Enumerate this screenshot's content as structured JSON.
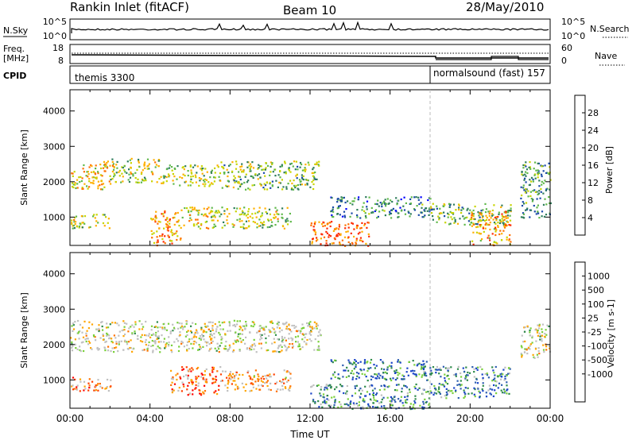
{
  "header": {
    "station": "Rankin Inlet (fitACF)",
    "beam": "Beam 10",
    "date": "28/May/2010"
  },
  "strips": {
    "nsky_label": "N.Sky",
    "nsky_ticks": [
      "10^5",
      "10^0"
    ],
    "nsearch_label": "N.Search",
    "nsearch_ticks": [
      "10^5",
      "10^0"
    ],
    "freq_label": "Freq.",
    "freq_unit": "[MHz]",
    "freq_ticks": [
      "18",
      "8"
    ],
    "nave_label": "Nave",
    "nave_ticks": [
      "60",
      "0"
    ],
    "cpid_label": "CPID",
    "cpid_modes": [
      {
        "label": "themis 3300",
        "start_hour": 0
      },
      {
        "label": "normalsound (fast) 157",
        "start_hour": 18
      }
    ]
  },
  "colors": {
    "power_scale": [
      "#0000ff",
      "#1a4aa8",
      "#2e7d5b",
      "#5fb84a",
      "#c8d400",
      "#ffb000",
      "#ff7000",
      "#ff2a00"
    ],
    "velocity_scale": [
      "#1a44c8",
      "#2e5fb0",
      "#2e8a4a",
      "#7ad03a",
      "#c0c0c0",
      "#c0c0c0",
      "#ffa500",
      "#ff7000",
      "#ff4000",
      "#ff0000"
    ]
  },
  "chart_data": [
    {
      "type": "heatmap",
      "panel": "power",
      "xlabel": "",
      "ylabel": "Slant Range [km]",
      "xlim": [
        0,
        24
      ],
      "ylim": [
        200,
        4600
      ],
      "yticks": [
        1000,
        2000,
        3000,
        4000
      ],
      "colorbar_label": "Power [dB]",
      "colorbar_ticks": [
        "4",
        "8",
        "12",
        "16",
        "20",
        "24",
        "28"
      ],
      "scatter_regions": [
        {
          "t0": 0.0,
          "t1": 2.0,
          "r0": 1800,
          "r1": 2600,
          "level": 0.65
        },
        {
          "t0": 2.0,
          "t1": 4.5,
          "r0": 2000,
          "r1": 2700,
          "level": 0.55
        },
        {
          "t0": 4.5,
          "t1": 7.5,
          "r0": 1900,
          "r1": 2500,
          "level": 0.5
        },
        {
          "t0": 7.5,
          "t1": 12.5,
          "r0": 1800,
          "r1": 2600,
          "level": 0.45
        },
        {
          "t0": 0.0,
          "t1": 2.0,
          "r0": 700,
          "r1": 1100,
          "level": 0.55
        },
        {
          "t0": 4.0,
          "t1": 5.5,
          "r0": 200,
          "r1": 1200,
          "level": 0.75
        },
        {
          "t0": 5.5,
          "t1": 7.0,
          "r0": 700,
          "r1": 1300,
          "level": 0.6
        },
        {
          "t0": 7.0,
          "t1": 11.0,
          "r0": 700,
          "r1": 1300,
          "level": 0.55
        },
        {
          "t0": 12.0,
          "t1": 15.0,
          "r0": 200,
          "r1": 900,
          "level": 0.85
        },
        {
          "t0": 13.0,
          "t1": 18.0,
          "r0": 1000,
          "r1": 1600,
          "level": 0.3
        },
        {
          "t0": 18.0,
          "t1": 22.0,
          "r0": 800,
          "r1": 1400,
          "level": 0.45
        },
        {
          "t0": 20.0,
          "t1": 22.0,
          "r0": 200,
          "r1": 1200,
          "level": 0.7
        },
        {
          "t0": 22.5,
          "t1": 24.0,
          "r0": 1000,
          "r1": 2600,
          "level": 0.35
        }
      ]
    },
    {
      "type": "heatmap",
      "panel": "velocity",
      "xlabel": "Time UT",
      "ylabel": "Slant Range [km]",
      "xlim": [
        0,
        24
      ],
      "ylim": [
        200,
        4600
      ],
      "xticks": [
        "00:00",
        "04:00",
        "08:00",
        "12:00",
        "16:00",
        "20:00",
        "00:00"
      ],
      "yticks": [
        1000,
        2000,
        3000,
        4000
      ],
      "colorbar_label": "Velocity [m s-1]",
      "colorbar_ticks": [
        "1000",
        "500",
        "100",
        "25",
        "-25",
        "-100",
        "-500",
        "-1000"
      ],
      "scatter_regions": [
        {
          "t0": 0.0,
          "t1": 12.5,
          "r0": 1800,
          "r1": 2700,
          "level": 0.5
        },
        {
          "t0": 0.0,
          "t1": 2.0,
          "r0": 700,
          "r1": 1100,
          "level": 0.7
        },
        {
          "t0": 5.0,
          "t1": 7.5,
          "r0": 600,
          "r1": 1400,
          "level": 0.78
        },
        {
          "t0": 7.5,
          "t1": 11.0,
          "r0": 700,
          "r1": 1300,
          "level": 0.62
        },
        {
          "t0": 12.0,
          "t1": 18.0,
          "r0": 200,
          "r1": 900,
          "level": 0.25
        },
        {
          "t0": 13.0,
          "t1": 18.0,
          "r0": 1000,
          "r1": 1600,
          "level": 0.18
        },
        {
          "t0": 18.0,
          "t1": 22.0,
          "r0": 500,
          "r1": 1400,
          "level": 0.22
        },
        {
          "t0": 22.5,
          "t1": 24.0,
          "r0": 1600,
          "r1": 2600,
          "level": 0.5
        }
      ]
    }
  ]
}
